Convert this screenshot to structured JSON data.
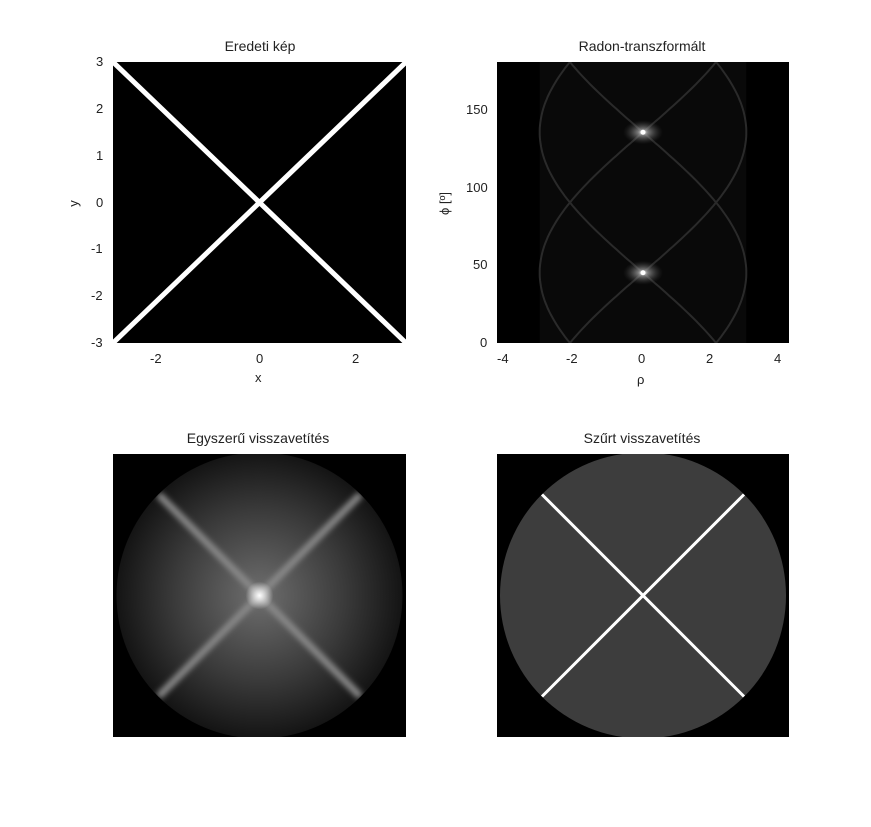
{
  "chart_data": [
    {
      "type": "heatmap",
      "title": "Eredeti kép",
      "xlabel": "x",
      "ylabel": "y",
      "xlim": [
        -3,
        3
      ],
      "ylim": [
        -3,
        3
      ],
      "xticks": [
        "-2",
        "0",
        "2"
      ],
      "yticks": [
        "3",
        "2",
        "1",
        "0",
        "-1",
        "-2",
        "-3"
      ],
      "content": "two bright lines y = x and y = -x on black",
      "line_slopes": [
        1,
        -1
      ],
      "colormap": "gray"
    },
    {
      "type": "heatmap",
      "title": "Radon-transzformált",
      "xlabel": "ρ",
      "ylabel": "ϕ [º]",
      "xlim": [
        -4.24,
        4.24
      ],
      "ylim": [
        0,
        180
      ],
      "xticks": [
        "-4",
        "-2",
        "0",
        "2",
        "4"
      ],
      "yticks": [
        "150",
        "100",
        "50",
        "0"
      ],
      "peaks": [
        {
          "rho": 0,
          "phi": 45
        },
        {
          "rho": 0,
          "phi": 135
        }
      ],
      "support_radius": 3,
      "colormap": "gray"
    },
    {
      "type": "heatmap",
      "title": "Egyszerű visszavetítés",
      "content": "blurred X with bright center, circular support",
      "colormap": "gray"
    },
    {
      "type": "heatmap",
      "title": "Szűrt visszavetítés",
      "content": "sharp X on gray circular disk",
      "colormap": "gray"
    }
  ]
}
